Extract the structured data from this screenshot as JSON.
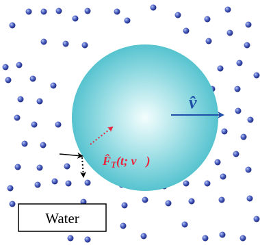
{
  "velocity_label": "v̂",
  "force_label": {
    "main": "F̂",
    "sub": "T",
    "args": "(t; v⃗)"
  },
  "water_label": "Water"
}
